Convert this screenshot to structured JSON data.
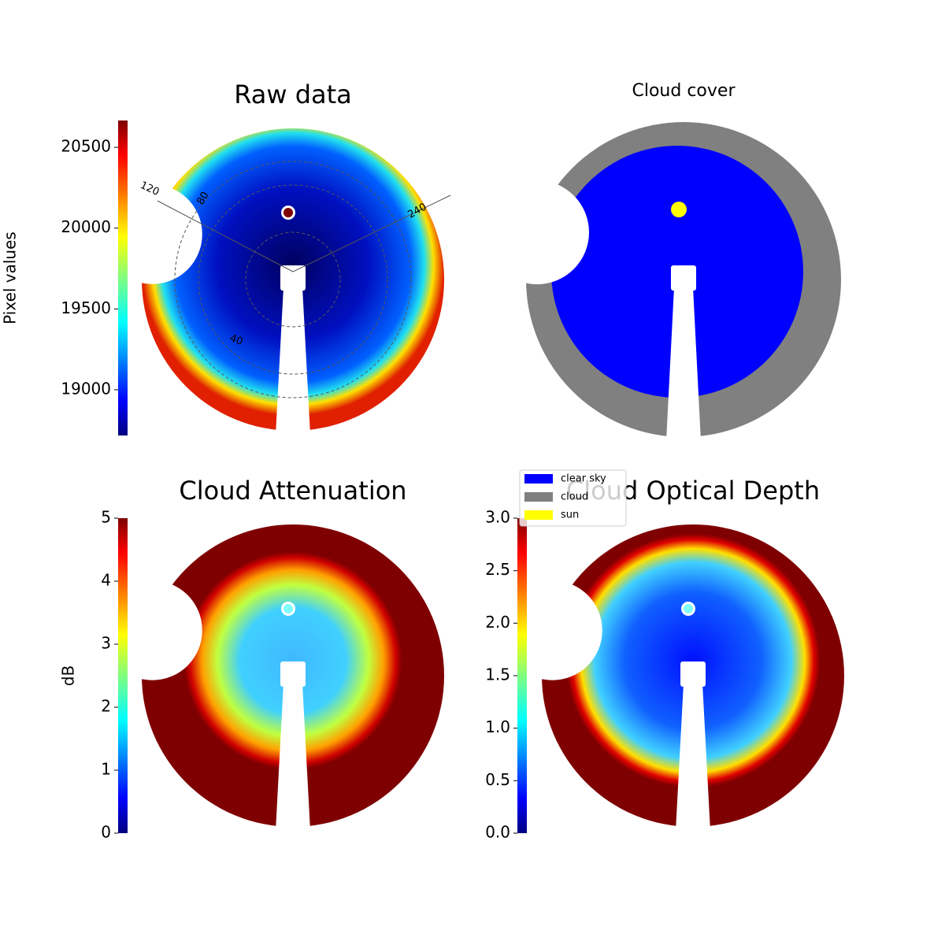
{
  "chart_data": [
    {
      "type": "image",
      "title": "Raw data",
      "colorbar_label": "Pixel values",
      "colormap": "jet",
      "ylim": [
        18717,
        20666
      ],
      "yticks": [
        19000,
        19500,
        20000,
        20500
      ],
      "annotations": [
        "120",
        "80",
        "240",
        "40"
      ]
    },
    {
      "type": "mask",
      "title": "Cloud cover",
      "series": [
        {
          "name": "clear sky",
          "color": "#0000ff"
        },
        {
          "name": "cloud",
          "color": "#808080"
        },
        {
          "name": "sun",
          "color": "#ffff00"
        }
      ]
    },
    {
      "type": "image",
      "title": "Cloud Attenuation",
      "colorbar_label": "dB",
      "colormap": "jet",
      "ylim": [
        0,
        5
      ],
      "yticks": [
        0,
        1,
        2,
        3,
        4,
        5
      ]
    },
    {
      "type": "image",
      "title": "Cloud Optical Depth",
      "colormap": "jet",
      "ylim": [
        0,
        3
      ],
      "yticks": [
        {
          "value": 0,
          "label": "0.0"
        },
        0.5,
        {
          "value": 1,
          "label": "1.0"
        },
        1.5,
        {
          "value": 2,
          "label": "2.0"
        },
        2.5,
        {
          "value": 3,
          "label": "3.0"
        }
      ]
    }
  ]
}
